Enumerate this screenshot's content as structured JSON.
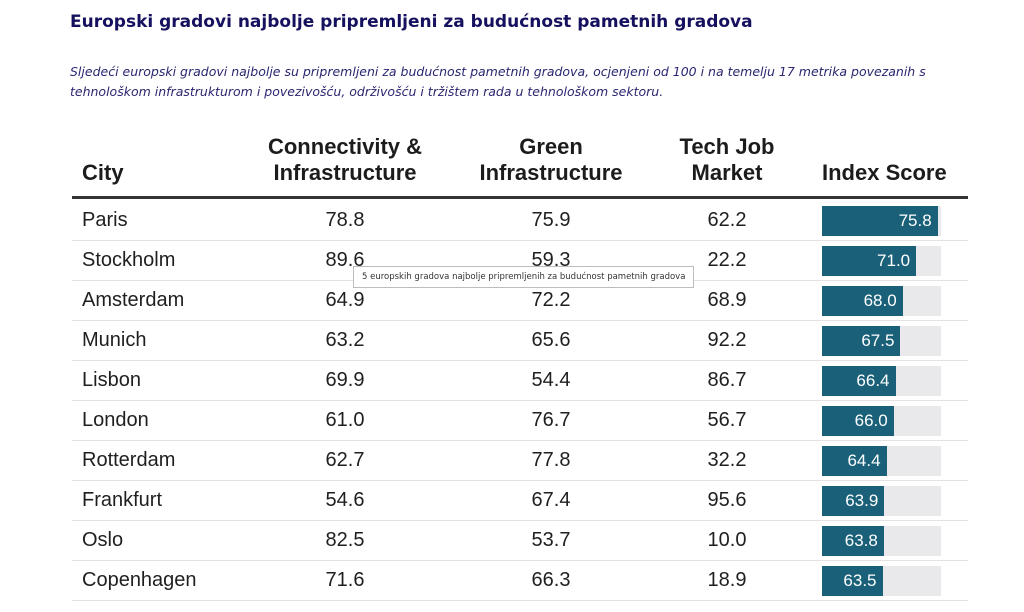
{
  "title": "Europski gradovi najbolje pripremljeni za budućnost pametnih gradova",
  "subtitle": "Sljedeći europski gradovi najbolje su pripremljeni za budućnost pametnih gradova, ocjenjeni od 100 i na temelju 17 metrika povezanih s tehnološkom infrastrukturom i povezivošću, održivošću i tržištem rada u tehnološkom sektoru.",
  "tooltip": "5 europskih gradova najbolje pripremljenih za budućnost pametnih gradova",
  "colors": {
    "bar": "#1a6079",
    "track": "#e9e9ec",
    "title": "#15115e"
  },
  "chart_data": {
    "type": "table",
    "columns": [
      {
        "key": "city",
        "label": "City"
      },
      {
        "key": "connectivity",
        "label": "Connectivity & Infrastructure"
      },
      {
        "key": "green",
        "label": "Green Infrastructure"
      },
      {
        "key": "tech",
        "label": "Tech Job Market"
      },
      {
        "key": "score",
        "label": "Index Score"
      }
    ],
    "rows": [
      {
        "city": "Paris",
        "connectivity": "78.8",
        "green": "75.9",
        "tech": "62.2",
        "score": "75.8"
      },
      {
        "city": "Stockholm",
        "connectivity": "89.6",
        "green": "59.3",
        "tech": "22.2",
        "score": "71.0"
      },
      {
        "city": "Amsterdam",
        "connectivity": "64.9",
        "green": "72.2",
        "tech": "68.9",
        "score": "68.0"
      },
      {
        "city": "Munich",
        "connectivity": "63.2",
        "green": "65.6",
        "tech": "92.2",
        "score": "67.5"
      },
      {
        "city": "Lisbon",
        "connectivity": "69.9",
        "green": "54.4",
        "tech": "86.7",
        "score": "66.4"
      },
      {
        "city": "London",
        "connectivity": "61.0",
        "green": "76.7",
        "tech": "56.7",
        "score": "66.0"
      },
      {
        "city": "Rotterdam",
        "connectivity": "62.7",
        "green": "77.8",
        "tech": "32.2",
        "score": "64.4"
      },
      {
        "city": "Frankfurt",
        "connectivity": "54.6",
        "green": "67.4",
        "tech": "95.6",
        "score": "63.9"
      },
      {
        "city": "Oslo",
        "connectivity": "82.5",
        "green": "53.7",
        "tech": "10.0",
        "score": "63.8"
      },
      {
        "city": "Copenhagen",
        "connectivity": "71.6",
        "green": "66.3",
        "tech": "18.9",
        "score": "63.5"
      }
    ],
    "bar_max": 100
  }
}
